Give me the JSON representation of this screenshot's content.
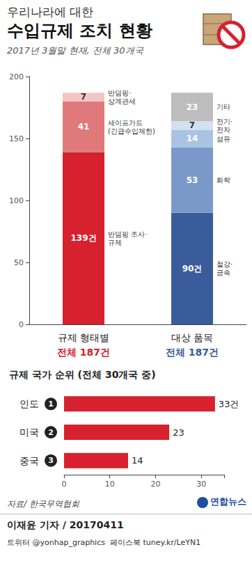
{
  "header": {
    "kicker": "우리나라에 대한",
    "title": "수입규제 조치 현황",
    "subtitle": "2017년 3월말 현재, 전체 30개국"
  },
  "chart_data": [
    {
      "type": "bar",
      "stacked": true,
      "data_labels": true,
      "grid": false,
      "categories": [
        "규제 형태별",
        "대상 품목"
      ],
      "annotations": [
        "전체 187건",
        "전체 187건"
      ],
      "ylim": [
        0,
        200
      ],
      "yticks": [
        0,
        50,
        100,
        150,
        200
      ],
      "series": [
        {
          "name": "반덤핑 조사·\n규제",
          "color": "#d7212e",
          "values": [
            139,
            null
          ],
          "value_labels": [
            "139건",
            null
          ]
        },
        {
          "name": "세이프가드\n(긴급수입제한)",
          "color": "#e0797b",
          "values": [
            41,
            null
          ],
          "value_labels": [
            "41",
            null
          ]
        },
        {
          "name": "반덤핑·\n상계관세",
          "color": "#f3c5c4",
          "values": [
            7,
            null
          ],
          "value_labels": [
            "7",
            null
          ]
        },
        {
          "name": "철강·\n금속",
          "color": "#3b5c9a",
          "values": [
            null,
            90
          ],
          "value_labels": [
            null,
            "90건"
          ]
        },
        {
          "name": "화학",
          "color": "#7a99c9",
          "values": [
            null,
            53
          ],
          "value_labels": [
            null,
            "53"
          ]
        },
        {
          "name": "섬유",
          "color": "#a9c3e3",
          "values": [
            null,
            14
          ],
          "value_labels": [
            null,
            "14"
          ]
        },
        {
          "name": "전기·\n전자",
          "color": "#d2e0f0",
          "values": [
            null,
            7
          ],
          "value_labels": [
            null,
            "7"
          ]
        },
        {
          "name": "기타",
          "color": "#bdbdbd",
          "values": [
            null,
            23
          ],
          "value_labels": [
            null,
            "23"
          ]
        }
      ]
    },
    {
      "type": "bar",
      "orientation": "horizontal",
      "title": "규제 국가 순위 (전체 30개국 중)",
      "data_labels": true,
      "grid": false,
      "categories": [
        "인도",
        "미국",
        "중국"
      ],
      "ranks": [
        "1",
        "2",
        "3"
      ],
      "values": [
        33,
        23,
        14
      ],
      "value_labels": [
        "33건",
        "23",
        "14"
      ],
      "color": "#d7212e",
      "xlim": [
        0,
        35
      ],
      "xticks": [
        0,
        10,
        20,
        30
      ]
    }
  ],
  "footer": {
    "source": "자료/ 한국무역협회",
    "logo": "연합뉴스",
    "author": "이재윤 기자 / 20170411",
    "social": "트위터 @yonhap_graphics  페이스북 tuney.kr/LeYN1"
  }
}
